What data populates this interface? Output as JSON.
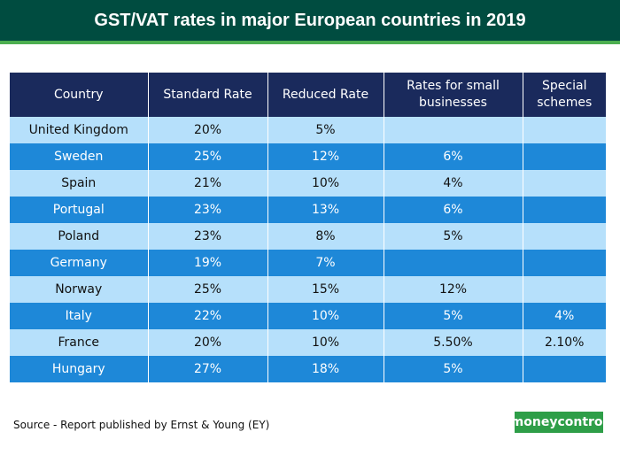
{
  "header": {
    "title": "GST/VAT rates in major European countries in 2019"
  },
  "chart_data": {
    "type": "table",
    "title": "GST/VAT rates in major European countries in 2019",
    "columns": [
      "Country",
      "Standard Rate",
      "Reduced Rate",
      "Rates for small businesses",
      "Special schemes"
    ],
    "rows": [
      [
        "United Kingdom",
        "20%",
        "5%",
        "",
        ""
      ],
      [
        "Sweden",
        "25%",
        "12%",
        "6%",
        ""
      ],
      [
        "Spain",
        "21%",
        "10%",
        "4%",
        ""
      ],
      [
        "Portugal",
        "23%",
        "13%",
        "6%",
        ""
      ],
      [
        "Poland",
        "23%",
        "8%",
        "5%",
        ""
      ],
      [
        "Germany",
        "19%",
        "7%",
        "",
        ""
      ],
      [
        "Norway",
        "25%",
        "15%",
        "12%",
        ""
      ],
      [
        "Italy",
        "22%",
        "10%",
        "5%",
        "4%"
      ],
      [
        "France",
        "20%",
        "10%",
        "5.50%",
        "2.10%"
      ],
      [
        "Hungary",
        "27%",
        "18%",
        "5%",
        ""
      ]
    ]
  },
  "footer": {
    "source": "Source - Report published by Ernst & Young (EY)",
    "logo_text": "moneycontrol"
  },
  "colors": {
    "header_bg": "#004c40",
    "header_accent": "#4caf50",
    "table_header": "#1a2a5c",
    "row_light": "#b6e0fb",
    "row_dark": "#1e88d8",
    "logo_bg": "#2e9e48"
  }
}
